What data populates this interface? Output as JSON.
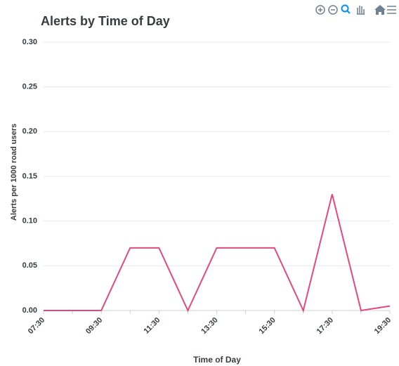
{
  "chart_data": {
    "type": "line",
    "title": "Alerts by Time of Day",
    "x_label": "Time of Day",
    "y_label": "Alerts per 1000 road users",
    "categories": [
      "07:30",
      null,
      "09:30",
      null,
      "11:30",
      null,
      "13:30",
      null,
      "15:30",
      null,
      "17:30",
      null,
      "19:30"
    ],
    "series": [
      {
        "name": "Alerts",
        "color": "#e5487d",
        "values": [
          0,
          0,
          0,
          0.07,
          0.07,
          0,
          0.07,
          0.07,
          0.07,
          0,
          0.13,
          0,
          0.005
        ]
      }
    ],
    "ylim": [
      0,
      0.3
    ],
    "yticks": [
      {
        "value": 0,
        "label": "0.00"
      },
      {
        "value": 0.05,
        "label": "0.05"
      },
      {
        "value": 0.1,
        "label": "0.10"
      },
      {
        "value": 0.15,
        "label": "0.15"
      },
      {
        "value": 0.2,
        "label": "0.20"
      },
      {
        "value": 0.25,
        "label": "0.25"
      },
      {
        "value": 0.3,
        "label": "0.30"
      }
    ],
    "grid": true
  }
}
